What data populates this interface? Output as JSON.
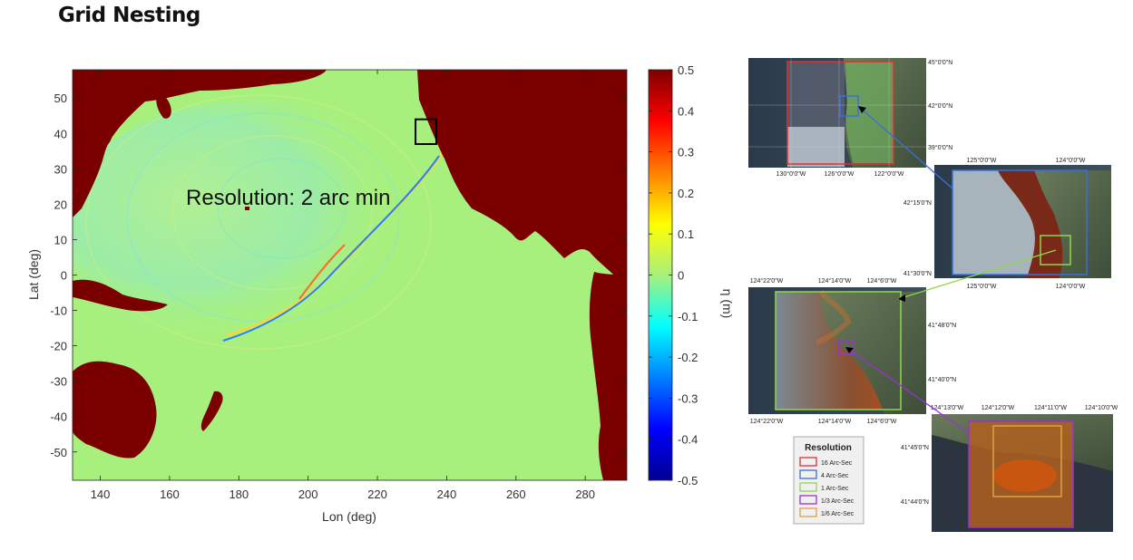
{
  "page_title": "Grid Nesting",
  "chart_data": {
    "type": "heatmap",
    "title": "",
    "annotation": "Resolution: 2 arc min",
    "xlabel": "Lon (deg)",
    "ylabel": "Lat (deg)",
    "xticks": [
      "140",
      "160",
      "180",
      "200",
      "220",
      "240",
      "260",
      "280"
    ],
    "yticks": [
      "50",
      "40",
      "30",
      "20",
      "10",
      "0",
      "-10",
      "-20",
      "-30",
      "-40",
      "-50"
    ],
    "xlim": [
      132,
      292
    ],
    "ylim": [
      -58,
      58
    ],
    "colorbar": {
      "label": "η (m)",
      "range": [
        -0.5,
        0.5
      ],
      "ticks": [
        "0.5",
        "0.4",
        "0.3",
        "0.2",
        "0.1",
        "0",
        "-0.1",
        "-0.2",
        "-0.3",
        "-0.4",
        "-0.5"
      ]
    },
    "highlight_box": {
      "lon": [
        231,
        237
      ],
      "lat": [
        37,
        44
      ]
    },
    "colors": {
      "land": "#7a0000",
      "ocean": "#a8f07e"
    }
  },
  "nested_maps": [
    {
      "id": "16arcsec",
      "right_labels": [
        "45°0'0\"N",
        "42°0'0\"N",
        "39°0'0\"N"
      ],
      "bottom_labels": [
        "130°0'0\"W",
        "126°0'0\"W",
        "122°0'0\"W"
      ]
    },
    {
      "id": "4arcsec",
      "top_labels": [
        "125°0'0\"W",
        "124°0'0\"W"
      ],
      "left_labels": [
        "42°15'0\"N",
        "41°30'0\"N"
      ],
      "bottom_labels": [
        "125°0'0\"W",
        "124°0'0\"W"
      ]
    },
    {
      "id": "1arcsec",
      "top_labels": [
        "124°22'0\"W",
        "124°14'0\"W",
        "124°6'0\"W"
      ],
      "right_labels": [
        "41°48'0\"N",
        "41°40'0\"N"
      ],
      "bottom_labels": [
        "124°22'0\"W",
        "124°14'0\"W",
        "124°6'0\"W"
      ]
    },
    {
      "id": "third-arcsec",
      "top_labels": [
        "124°13'0\"W",
        "124°12'0\"W",
        "124°11'0\"W",
        "124°10'0\"W"
      ],
      "left_labels": [
        "41°45'0\"N",
        "41°44'0\"N"
      ]
    }
  ],
  "legend": {
    "title": "Resolution",
    "items": [
      {
        "label": "16 Arc-Sec",
        "color": "#e03030"
      },
      {
        "label": "4 Arc-Sec",
        "color": "#3b6fd8"
      },
      {
        "label": "1 Arc-Sec",
        "color": "#8fd84a"
      },
      {
        "label": "1/3 Arc-Sec",
        "color": "#9b30d8"
      },
      {
        "label": "1/6 Arc-Sec",
        "color": "#e0a040"
      }
    ]
  }
}
